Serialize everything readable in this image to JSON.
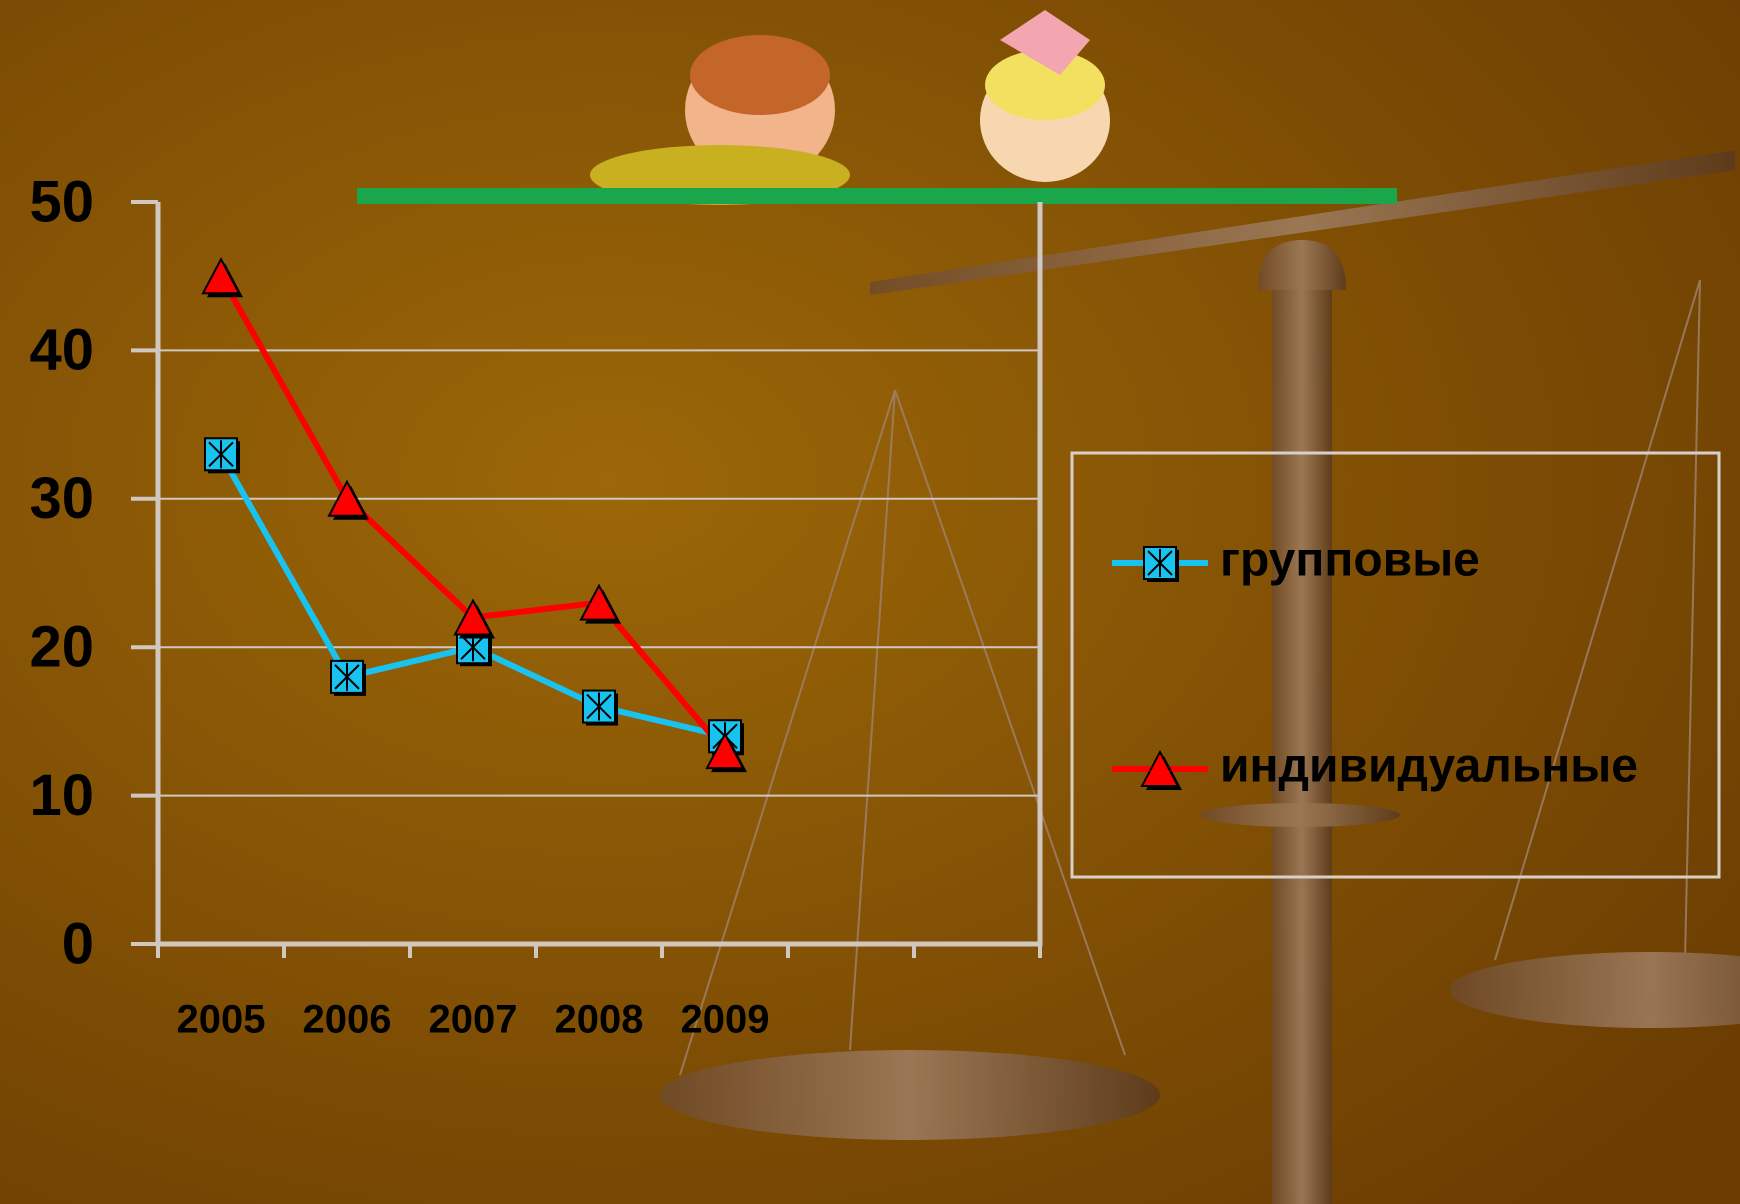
{
  "chart_data": {
    "type": "line",
    "categories": [
      "2005",
      "2006",
      "2007",
      "2008",
      "2009",
      null,
      null
    ],
    "series": [
      {
        "name": "групповые",
        "color": "#19c3ef",
        "marker": "square-star",
        "values": [
          33,
          18,
          20,
          16,
          14,
          null,
          null
        ]
      },
      {
        "name": "индивидуальные",
        "color": "#ff0000",
        "marker": "triangle",
        "values": [
          45,
          30,
          22,
          23,
          13,
          null,
          null
        ]
      }
    ],
    "ylim": [
      0,
      50
    ],
    "yticks": [
      0,
      10,
      20,
      30,
      40,
      50
    ],
    "grid": true,
    "legend": "right"
  }
}
